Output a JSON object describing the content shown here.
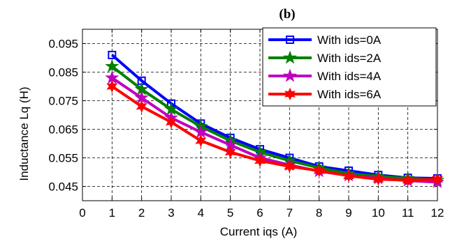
{
  "chart_data": {
    "type": "line",
    "panel_label": "(b)",
    "xlabel": "Current iqs (A)",
    "ylabel": "Inductance Lq (H)",
    "xlim": [
      0,
      12
    ],
    "ylim": [
      0.04,
      0.1
    ],
    "xticks": [
      0,
      1,
      2,
      3,
      4,
      5,
      6,
      7,
      8,
      9,
      10,
      11,
      12
    ],
    "yticks": [
      0.045,
      0.055,
      0.065,
      0.075,
      0.085,
      0.095
    ],
    "ytick_labels": [
      "0.045",
      "0.055",
      "0.065",
      "0.075",
      "0.085",
      "0.095"
    ],
    "grid": true,
    "legend_position": "top-right",
    "x": [
      1,
      2,
      3,
      4,
      5,
      6,
      7,
      8,
      9,
      10,
      11,
      12
    ],
    "series": [
      {
        "name": "With ids=0A",
        "color": "#0000ff",
        "marker": "square",
        "values": [
          0.091,
          0.082,
          0.074,
          0.067,
          0.062,
          0.058,
          0.055,
          0.052,
          0.0505,
          0.049,
          0.048,
          0.0478
        ]
      },
      {
        "name": "With ids=2A",
        "color": "#008000",
        "marker": "star",
        "values": [
          0.087,
          0.079,
          0.072,
          0.066,
          0.061,
          0.057,
          0.054,
          0.0515,
          0.0495,
          0.0485,
          0.0478,
          0.0472
        ]
      },
      {
        "name": "With ids=4A",
        "color": "#c000c0",
        "marker": "star",
        "values": [
          0.083,
          0.076,
          0.069,
          0.064,
          0.0595,
          0.055,
          0.0525,
          0.0503,
          0.0488,
          0.0478,
          0.047,
          0.0465
        ]
      },
      {
        "name": "With ids=6A",
        "color": "#ff0000",
        "marker": "hexagram",
        "values": [
          0.08,
          0.073,
          0.0675,
          0.061,
          0.057,
          0.054,
          0.052,
          0.0505,
          0.0487,
          0.0475,
          0.0472,
          0.0475
        ]
      }
    ]
  }
}
